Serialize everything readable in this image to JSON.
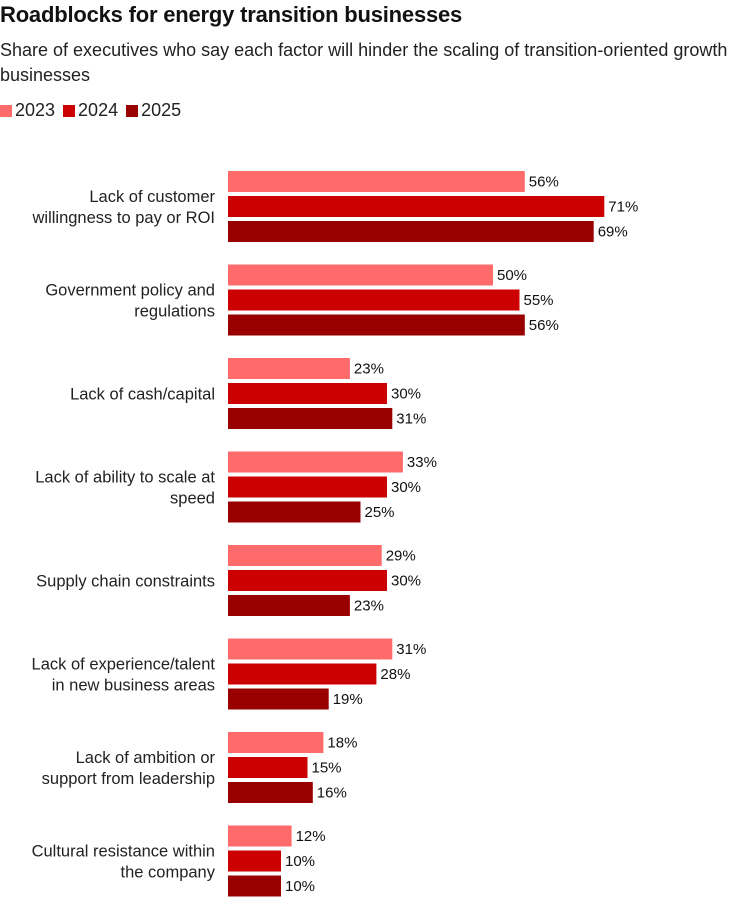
{
  "chart_data": {
    "type": "bar",
    "orientation": "horizontal",
    "title": "Roadblocks for energy transition businesses",
    "subtitle": "Share of executives who say each factor will hinder the scaling of transition-oriented growth businesses",
    "legend_position": "top-left",
    "grid": false,
    "xlim": [
      0,
      100
    ],
    "value_suffix": "%",
    "categories": [
      [
        "Lack of customer",
        "willingness to pay or ROI"
      ],
      [
        "Government policy and",
        "regulations"
      ],
      [
        "Lack of cash/capital"
      ],
      [
        "Lack of ability to scale at",
        "speed"
      ],
      [
        "Supply chain constraints"
      ],
      [
        "Lack of experience/talent",
        "in new business areas"
      ],
      [
        "Lack of ambition or",
        "support from leadership"
      ],
      [
        "Cultural resistance within",
        "the company"
      ]
    ],
    "series": [
      {
        "name": "2023",
        "color": "#ff6b6b",
        "values": [
          56,
          50,
          23,
          33,
          29,
          31,
          18,
          12
        ]
      },
      {
        "name": "2024",
        "color": "#cc0000",
        "values": [
          71,
          55,
          30,
          30,
          30,
          28,
          15,
          10
        ]
      },
      {
        "name": "2025",
        "color": "#990000",
        "values": [
          69,
          56,
          31,
          25,
          23,
          19,
          16,
          10
        ]
      }
    ]
  }
}
